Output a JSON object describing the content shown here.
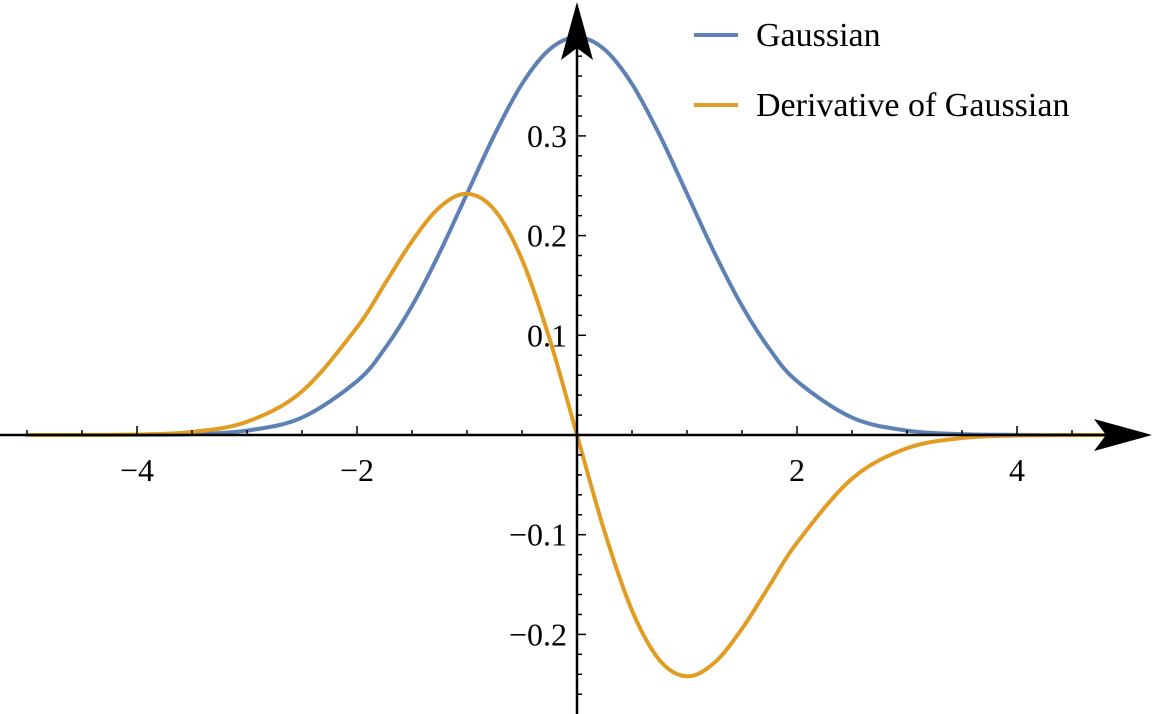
{
  "chart_data": {
    "type": "line",
    "title": "",
    "xlabel": "",
    "ylabel": "",
    "xlim": [
      -5.2,
      5.2
    ],
    "ylim": [
      -0.27,
      0.4
    ],
    "grid": false,
    "legend_position": "top-right",
    "x_ticks": [
      {
        "value": -4,
        "label": "−4"
      },
      {
        "value": -2,
        "label": "−2"
      },
      {
        "value": 2,
        "label": "2"
      },
      {
        "value": 4,
        "label": "4"
      }
    ],
    "y_ticks": [
      {
        "value": -0.2,
        "label": "−0.2"
      },
      {
        "value": -0.1,
        "label": "−0.1"
      },
      {
        "value": 0.1,
        "label": "0.1"
      },
      {
        "value": 0.2,
        "label": "0.2"
      },
      {
        "value": 0.3,
        "label": "0.3"
      }
    ],
    "series": [
      {
        "name": "Gaussian",
        "color": "#5E81B5",
        "x": [
          -5,
          -4.5,
          -4,
          -3.5,
          -3,
          -2.5,
          -2,
          -1.75,
          -1.5,
          -1.25,
          -1,
          -0.75,
          -0.5,
          -0.25,
          0,
          0.25,
          0.5,
          0.75,
          1,
          1.25,
          1.5,
          1.75,
          2,
          2.5,
          3,
          3.5,
          4,
          4.5,
          5
        ],
        "y": [
          1.5e-06,
          1.6e-05,
          0.000134,
          0.000873,
          0.00443,
          0.0175,
          0.054,
          0.0863,
          0.1295,
          0.1826,
          0.242,
          0.3011,
          0.3521,
          0.3867,
          0.3989,
          0.3867,
          0.3521,
          0.3011,
          0.242,
          0.1826,
          0.1295,
          0.0863,
          0.054,
          0.0175,
          0.00443,
          0.000873,
          0.000134,
          1.6e-05,
          1.5e-06
        ]
      },
      {
        "name": "Derivative of Gaussian",
        "color": "#E19C24",
        "x": [
          -5,
          -4.5,
          -4,
          -3.5,
          -3,
          -2.5,
          -2,
          -1.75,
          -1.5,
          -1.25,
          -1,
          -0.75,
          -0.5,
          -0.25,
          0,
          0.25,
          0.5,
          0.75,
          1,
          1.25,
          1.5,
          1.75,
          2,
          2.5,
          3,
          3.5,
          4,
          4.5,
          5
        ],
        "y": [
          7.4e-06,
          7.2e-05,
          0.000535,
          0.003055,
          0.0133,
          0.0438,
          0.108,
          0.151,
          0.1943,
          0.2283,
          0.242,
          0.2258,
          0.176,
          0.0967,
          0,
          -0.0967,
          -0.176,
          -0.2258,
          -0.242,
          -0.2283,
          -0.1943,
          -0.151,
          -0.108,
          -0.0438,
          -0.0133,
          -0.003055,
          -0.000535,
          -7.2e-05,
          -7.4e-06
        ]
      }
    ]
  }
}
